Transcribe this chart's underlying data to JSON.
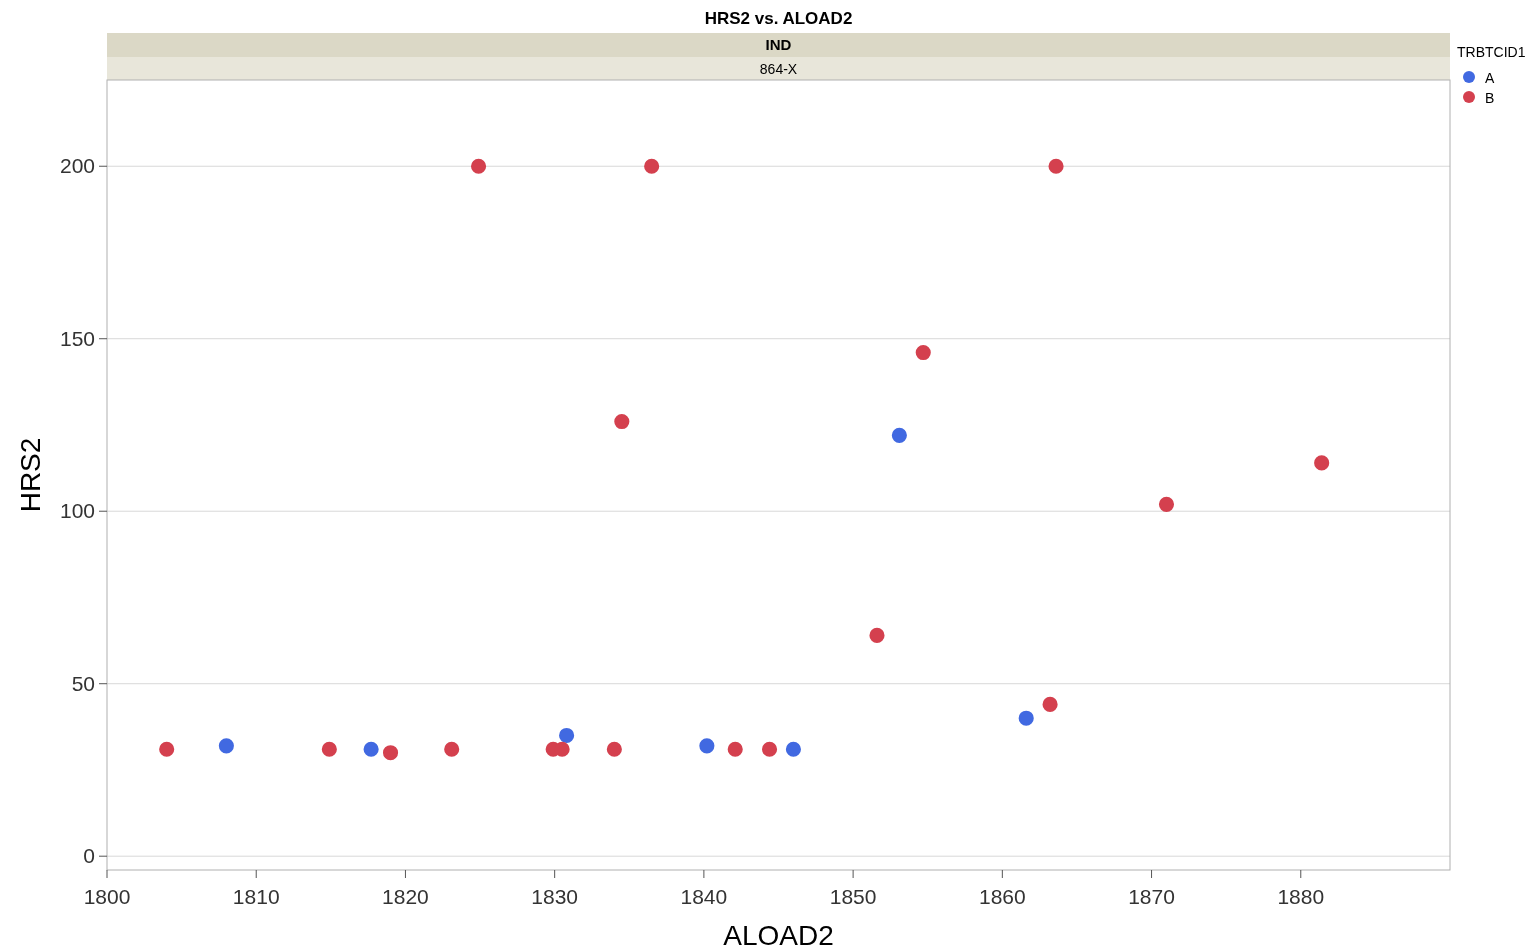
{
  "chart_data": {
    "type": "scatter",
    "title": "HRS2 vs. ALOAD2",
    "subtitle": "IND",
    "annotations": [
      "864-X"
    ],
    "xlabel": "ALOAD2",
    "ylabel": "HRS2",
    "legend_title": "TRBTCID1",
    "legend": "right",
    "grid": "y",
    "marker": "circle",
    "xlim": [
      1800,
      1890
    ],
    "xticks": [
      1800,
      1810,
      1820,
      1830,
      1840,
      1850,
      1860,
      1870,
      1880
    ],
    "ylim": [
      -4,
      225
    ],
    "yticks": [
      0,
      50,
      100,
      150,
      200
    ],
    "series": [
      {
        "name": "A",
        "color": "#4169e1",
        "x": [
          1808.0,
          1817.7,
          1830.8,
          1840.2,
          1846.0,
          1853.1,
          1861.6
        ],
        "values": [
          32,
          31,
          35,
          32,
          31,
          122,
          40
        ]
      },
      {
        "name": "B",
        "color": "#d4404e",
        "x": [
          1804.0,
          1814.9,
          1819.0,
          1823.1,
          1824.9,
          1829.9,
          1830.5,
          1834.0,
          1834.5,
          1836.5,
          1842.1,
          1844.4,
          1851.6,
          1854.7,
          1863.2,
          1863.6,
          1871.0,
          1881.4
        ],
        "values": [
          31,
          31,
          30,
          31,
          200,
          31,
          31,
          31,
          126,
          200,
          31,
          31,
          64,
          146,
          44,
          200,
          102,
          114
        ]
      }
    ]
  }
}
